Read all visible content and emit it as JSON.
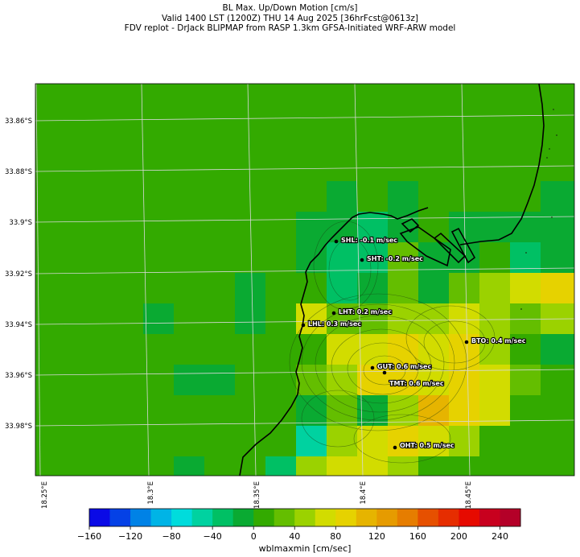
{
  "title": {
    "line1": "BL Max. Up/Down Motion [cm/s]",
    "line2": "Valid 1400 LST (1200Z) THU 14 Aug 2025 [36hrFcst@0613z]",
    "line3": "FDV replot - DrJack BLIPMAP from RASP 1.3km GFSA-Initiated WRF-ARW model"
  },
  "map": {
    "lat_labels": [
      "33.86°S",
      "33.88°S",
      "33.9°S",
      "33.92°S",
      "33.94°S",
      "33.96°S",
      "33.98°S"
    ],
    "lon_labels": [
      "18.25°E",
      "18.3°E",
      "18.35°E",
      "18.4°E",
      "18.45°E"
    ],
    "colors": {
      "background": "#33aa00",
      "coastline": "#000000",
      "gridline": "#d8d8d8"
    }
  },
  "stations": [
    {
      "id": "SHL",
      "label": "SHL: -0.1 m/sec"
    },
    {
      "id": "SHT",
      "label": "SHT: -0.2 m/sec"
    },
    {
      "id": "LHT",
      "label": "LHT: 0.2 m/sec"
    },
    {
      "id": "LHL",
      "label": "LHL: 0.3 m/sec"
    },
    {
      "id": "BTO",
      "label": "BTO: 0.4 m/sec"
    },
    {
      "id": "GUT",
      "label": "GUT: 0.6 m/sec"
    },
    {
      "id": "TMT",
      "label": "TMT: 0.6 m/sec"
    },
    {
      "id": "OHT",
      "label": "OHT: 0.5 m/sec"
    }
  ],
  "colorbar": {
    "label": "wblmaxmin [cm/sec]",
    "ticks": [
      "−160",
      "−120",
      "−80",
      "−40",
      "0",
      "40",
      "80",
      "120",
      "160",
      "200",
      "240"
    ],
    "range": [
      -160,
      260
    ],
    "step": 20,
    "colors": [
      "#0a0ae6",
      "#0541e6",
      "#0082e6",
      "#00b4e6",
      "#00dcdc",
      "#00d2a0",
      "#00c064",
      "#0aaa32",
      "#33aa00",
      "#64be00",
      "#9bd200",
      "#d2dc00",
      "#e6d200",
      "#e6b400",
      "#e69b00",
      "#e67d00",
      "#e65000",
      "#e62d00",
      "#e60a00",
      "#c8001e",
      "#b40028"
    ]
  }
}
